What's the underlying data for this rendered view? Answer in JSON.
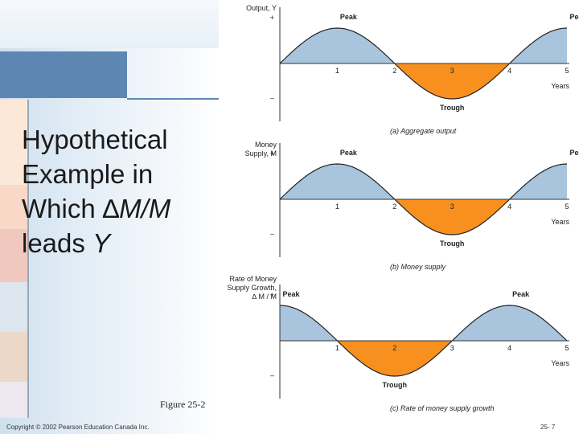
{
  "slide": {
    "title_lines": [
      {
        "parts": [
          {
            "text": "Hypothetical",
            "italic": false
          }
        ]
      },
      {
        "parts": [
          {
            "text": "Example in",
            "italic": false
          }
        ]
      },
      {
        "parts": [
          {
            "text": "Which ",
            "italic": false
          },
          {
            "text": "∆",
            "italic": false
          },
          {
            "text": "M/M",
            "italic": true
          }
        ]
      },
      {
        "parts": [
          {
            "text": "leads ",
            "italic": false
          },
          {
            "text": "Y",
            "italic": true
          }
        ]
      }
    ],
    "figure_label": "Figure 25-2",
    "copyright": "Copyright © 2002 Pearson Education Canada Inc.",
    "page_number": "25- 7"
  },
  "chart_data": [
    {
      "type": "area",
      "title": "(a) Aggregate output",
      "ylabel_lines": [
        "Output, Y"
      ],
      "xlabel": "Years",
      "x_ticks": [
        "1",
        "2",
        "3",
        "4",
        "5"
      ],
      "plus_label": "+",
      "minus_label": "–",
      "peaks": [
        {
          "label": "Peak",
          "x": 1
        },
        {
          "label": "Peak",
          "x": 5
        }
      ],
      "troughs": [
        {
          "label": "Trough",
          "x": 3
        }
      ],
      "wave_phase": 0,
      "x": [
        0,
        1,
        2,
        3,
        4,
        5
      ],
      "y": [
        0,
        1,
        0,
        -1,
        0,
        1
      ],
      "xlim": [
        0,
        5
      ],
      "ylim": [
        -1,
        1
      ],
      "colors": {
        "positive": "#a9c5dd",
        "negative": "#f7901e",
        "line": "#222222"
      }
    },
    {
      "type": "area",
      "title": "(b) Money supply",
      "ylabel_lines": [
        "Money",
        "Supply, M"
      ],
      "xlabel": "Years",
      "x_ticks": [
        "1",
        "2",
        "3",
        "4",
        "5"
      ],
      "plus_label": "+",
      "minus_label": "–",
      "peaks": [
        {
          "label": "Peak",
          "x": 1
        },
        {
          "label": "Peak",
          "x": 5
        }
      ],
      "troughs": [
        {
          "label": "Trough",
          "x": 3
        }
      ],
      "wave_phase": 0,
      "x": [
        0,
        1,
        2,
        3,
        4,
        5
      ],
      "y": [
        0,
        1,
        0,
        -1,
        0,
        1
      ],
      "xlim": [
        0,
        5
      ],
      "ylim": [
        -1,
        1
      ],
      "colors": {
        "positive": "#a9c5dd",
        "negative": "#f7901e",
        "line": "#222222"
      }
    },
    {
      "type": "area",
      "title": "(c) Rate of money supply growth",
      "ylabel_lines": [
        "Rate of Money",
        "Supply Growth,",
        "∆ M / M"
      ],
      "xlabel": "Years",
      "x_ticks": [
        "1",
        "2",
        "3",
        "4",
        "5"
      ],
      "plus_label": "+",
      "minus_label": "–",
      "peaks": [
        {
          "label": "Peak",
          "x": 0
        },
        {
          "label": "Peak",
          "x": 4
        }
      ],
      "troughs": [
        {
          "label": "Trough",
          "x": 2
        }
      ],
      "wave_phase": 1,
      "x": [
        0,
        1,
        2,
        3,
        4,
        5
      ],
      "y": [
        1,
        0,
        -1,
        0,
        1,
        0
      ],
      "xlim": [
        0,
        5
      ],
      "ylim": [
        -1,
        1
      ],
      "colors": {
        "positive": "#a9c5dd",
        "negative": "#f7901e",
        "line": "#222222"
      }
    }
  ]
}
